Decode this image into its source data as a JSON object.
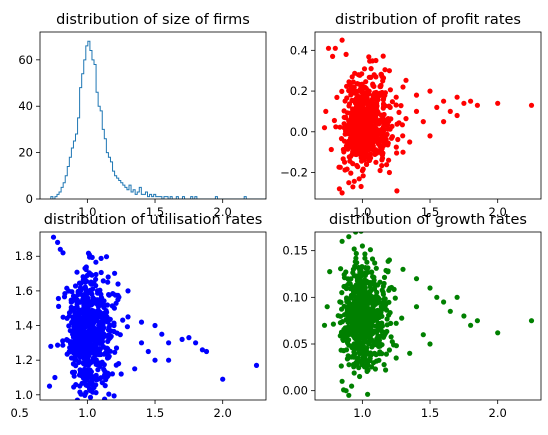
{
  "chart_data": [
    {
      "id": "size",
      "type": "histogram",
      "title": "distribution of size of firms",
      "xlim": [
        0.65,
        2.32
      ],
      "ylim": [
        0,
        72
      ],
      "xticks": [
        1.0,
        1.5,
        2.0
      ],
      "xtick_labels": [
        "1.0",
        "1.5",
        "2.0"
      ],
      "yticks": [
        0,
        20,
        40,
        60
      ],
      "ytick_labels": [
        "0",
        "20",
        "40",
        "60"
      ],
      "color": "#1f77b4",
      "bins": {
        "x0": 0.73,
        "width": 0.0152,
        "counts": [
          1,
          0,
          1,
          2,
          3,
          5,
          7,
          10,
          14,
          18,
          22,
          25,
          28,
          35,
          48,
          54,
          60,
          66,
          68,
          64,
          60,
          58,
          46,
          40,
          38,
          30,
          26,
          20,
          18,
          16,
          12,
          10,
          9,
          8,
          7,
          6,
          5,
          4,
          6,
          3,
          4,
          2,
          3,
          5,
          2,
          2,
          3,
          1,
          2,
          1,
          2,
          1,
          1,
          1,
          0,
          1,
          1,
          0,
          1,
          0,
          0,
          1,
          0,
          0,
          1,
          0,
          0,
          0,
          1,
          0,
          1,
          0,
          0,
          0,
          0,
          0,
          0,
          0,
          0,
          0,
          1,
          0,
          0,
          0,
          0,
          0,
          0,
          0,
          0,
          0,
          0,
          0,
          0,
          0,
          1,
          0,
          0,
          0,
          0,
          0,
          0,
          0,
          0,
          0,
          0
        ]
      }
    },
    {
      "id": "profit",
      "type": "scatter",
      "title": "distribution of profit rates",
      "xlim": [
        0.65,
        2.32
      ],
      "ylim": [
        -0.33,
        0.49
      ],
      "xticks": [
        1.0,
        1.5,
        2.0
      ],
      "xtick_labels": [
        "1.0",
        "1.5",
        "2.0"
      ],
      "yticks": [
        -0.2,
        0.0,
        0.2,
        0.4
      ],
      "ytick_labels": [
        "−0.2",
        "0.0",
        "0.2",
        "0.4"
      ],
      "color": "#ff0000",
      "points": [
        [
          0.75,
          0.41
        ],
        [
          0.78,
          0.37
        ],
        [
          0.8,
          0.41
        ],
        [
          0.85,
          0.45
        ],
        [
          0.88,
          0.38
        ],
        [
          0.83,
          -0.28
        ],
        [
          0.85,
          -0.3
        ],
        [
          0.9,
          -0.25
        ],
        [
          0.93,
          -0.27
        ],
        [
          1.1,
          0.35
        ],
        [
          1.2,
          0.3
        ],
        [
          1.3,
          0.22
        ],
        [
          1.4,
          0.18
        ],
        [
          1.5,
          0.2
        ],
        [
          1.55,
          0.12
        ],
        [
          1.6,
          0.15
        ],
        [
          1.65,
          0.1
        ],
        [
          1.7,
          0.17
        ],
        [
          1.75,
          0.14
        ],
        [
          1.8,
          0.15
        ],
        [
          1.85,
          0.13
        ],
        [
          2.0,
          0.14
        ],
        [
          2.25,
          0.13
        ],
        [
          1.45,
          0.05
        ],
        [
          1.5,
          -0.02
        ],
        [
          1.3,
          -0.1
        ],
        [
          1.2,
          -0.2
        ],
        [
          1.35,
          -0.05
        ],
        [
          1.6,
          0.05
        ],
        [
          1.7,
          0.08
        ],
        [
          1.15,
          0.25
        ],
        [
          1.25,
          0.17
        ],
        [
          1.4,
          0.1
        ],
        [
          1.1,
          -0.15
        ],
        [
          0.72,
          0.02
        ],
        [
          0.73,
          0.1
        ]
      ],
      "cluster": {
        "n": 650,
        "cx": 0.98,
        "sx": 0.11,
        "cy": 0.04,
        "sy": 0.11
      }
    },
    {
      "id": "util",
      "type": "scatter",
      "title": "distribution of utilisation rates",
      "xlim": [
        0.65,
        2.32
      ],
      "ylim": [
        0.97,
        1.94
      ],
      "xticks": [
        0.5,
        1.0,
        1.5,
        2.0
      ],
      "xtick_labels": [
        "0.5",
        "1.0",
        "1.5",
        "2.0"
      ],
      "yticks": [
        1.0,
        1.2,
        1.4,
        1.6,
        1.8
      ],
      "ytick_labels": [
        "1.0",
        "1.2",
        "1.4",
        "1.6",
        "1.8"
      ],
      "color": "#0000ff",
      "points": [
        [
          0.75,
          1.91
        ],
        [
          0.78,
          1.88
        ],
        [
          0.8,
          1.84
        ],
        [
          0.82,
          1.82
        ],
        [
          0.73,
          1.28
        ],
        [
          0.72,
          1.05
        ],
        [
          0.76,
          1.1
        ],
        [
          1.2,
          1.5
        ],
        [
          1.3,
          1.45
        ],
        [
          1.4,
          1.42
        ],
        [
          1.5,
          1.4
        ],
        [
          1.55,
          1.35
        ],
        [
          1.6,
          1.3
        ],
        [
          1.7,
          1.32
        ],
        [
          1.75,
          1.33
        ],
        [
          1.8,
          1.3
        ],
        [
          1.85,
          1.26
        ],
        [
          1.88,
          1.25
        ],
        [
          2.0,
          1.09
        ],
        [
          2.25,
          1.17
        ],
        [
          1.45,
          1.25
        ],
        [
          1.5,
          1.2
        ],
        [
          1.35,
          1.15
        ],
        [
          1.25,
          1.12
        ],
        [
          1.4,
          1.3
        ],
        [
          1.6,
          1.2
        ],
        [
          1.3,
          1.6
        ],
        [
          1.15,
          1.65
        ],
        [
          1.1,
          1.58
        ]
      ],
      "cluster": {
        "n": 650,
        "cx": 0.97,
        "sx": 0.11,
        "cy": 1.37,
        "sy": 0.17
      }
    },
    {
      "id": "growth",
      "type": "scatter",
      "title": "distribution of growth rates",
      "xlim": [
        0.65,
        2.32
      ],
      "ylim": [
        -0.01,
        0.17
      ],
      "xticks": [
        1.0,
        1.5,
        2.0
      ],
      "xtick_labels": [
        "1.0",
        "1.5",
        "2.0"
      ],
      "yticks": [
        0.0,
        0.05,
        0.1,
        0.15
      ],
      "ytick_labels": [
        "0.00",
        "0.05",
        "0.10",
        "0.15"
      ],
      "color": "#008000",
      "points": [
        [
          0.85,
          0.16
        ],
        [
          0.9,
          0.165
        ],
        [
          0.95,
          0.17
        ],
        [
          1.0,
          0.155
        ],
        [
          0.88,
          0.0
        ],
        [
          0.9,
          -0.005
        ],
        [
          0.85,
          0.01
        ],
        [
          1.2,
          0.14
        ],
        [
          1.3,
          0.13
        ],
        [
          1.4,
          0.12
        ],
        [
          1.5,
          0.11
        ],
        [
          1.55,
          0.1
        ],
        [
          1.6,
          0.095
        ],
        [
          1.7,
          0.1
        ],
        [
          1.75,
          0.08
        ],
        [
          1.8,
          0.07
        ],
        [
          1.85,
          0.075
        ],
        [
          2.0,
          0.062
        ],
        [
          2.25,
          0.075
        ],
        [
          1.45,
          0.06
        ],
        [
          1.5,
          0.05
        ],
        [
          1.35,
          0.04
        ],
        [
          1.25,
          0.035
        ],
        [
          1.4,
          0.09
        ],
        [
          1.65,
          0.085
        ],
        [
          0.72,
          0.07
        ],
        [
          0.74,
          0.09
        ]
      ],
      "cluster": {
        "n": 650,
        "cx": 0.97,
        "sx": 0.11,
        "cy": 0.08,
        "sy": 0.028
      }
    }
  ]
}
